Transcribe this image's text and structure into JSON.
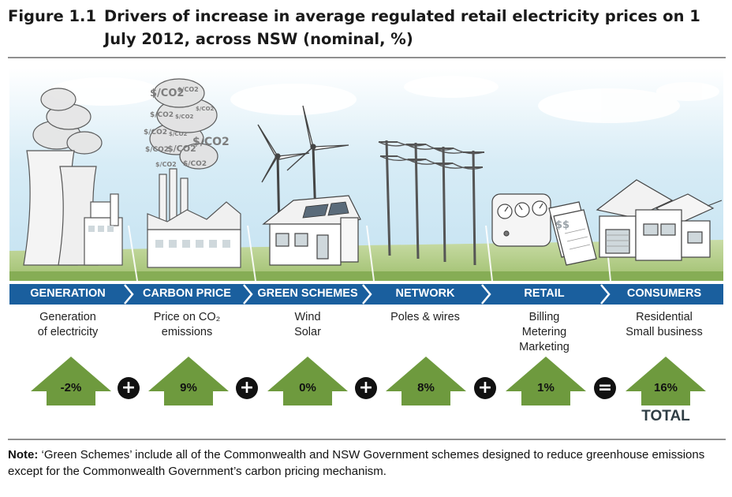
{
  "figure": {
    "number": "Figure 1.1",
    "title": "Drivers of increase in average regulated retail electricity prices on 1 July 2012, across NSW (nominal, %)"
  },
  "scene": {
    "co2_tags": [
      "$/CO2",
      "$/CO2",
      "$/CO2",
      "$/CO2",
      "$/CO2",
      "$/CO2",
      "$/CO2",
      "$/CO2",
      "$/CO2",
      "$/CO2",
      "$/CO2",
      "$/CO2"
    ],
    "meter_sign": "$$"
  },
  "colors": {
    "band": "#1a5f9e",
    "arrow": "#6e9a3e",
    "grass": "#a9c77c",
    "sky": "#d7ecf6"
  },
  "stages": [
    {
      "label": "GENERATION",
      "desc": "Generation\nof electricity",
      "value": "-2%"
    },
    {
      "label": "CARBON PRICE",
      "desc": "Price on CO₂\nemissions",
      "value": "9%"
    },
    {
      "label": "GREEN SCHEMES",
      "desc": "Wind\nSolar",
      "value": "0%"
    },
    {
      "label": "NETWORK",
      "desc": "Poles & wires",
      "value": "8%"
    },
    {
      "label": "RETAIL",
      "desc": "Billing\nMetering\nMarketing",
      "value": "1%"
    },
    {
      "label": "CONSUMERS",
      "desc": "Residential\nSmall business",
      "value": "16%"
    }
  ],
  "operators": [
    "+",
    "+",
    "+",
    "+",
    "="
  ],
  "total_label": "TOTAL",
  "note": {
    "label": "Note:",
    "text": "‘Green Schemes’ include all of the Commonwealth and NSW Government schemes designed to reduce greenhouse emissions except for the Commonwealth Government’s carbon pricing mechanism."
  }
}
